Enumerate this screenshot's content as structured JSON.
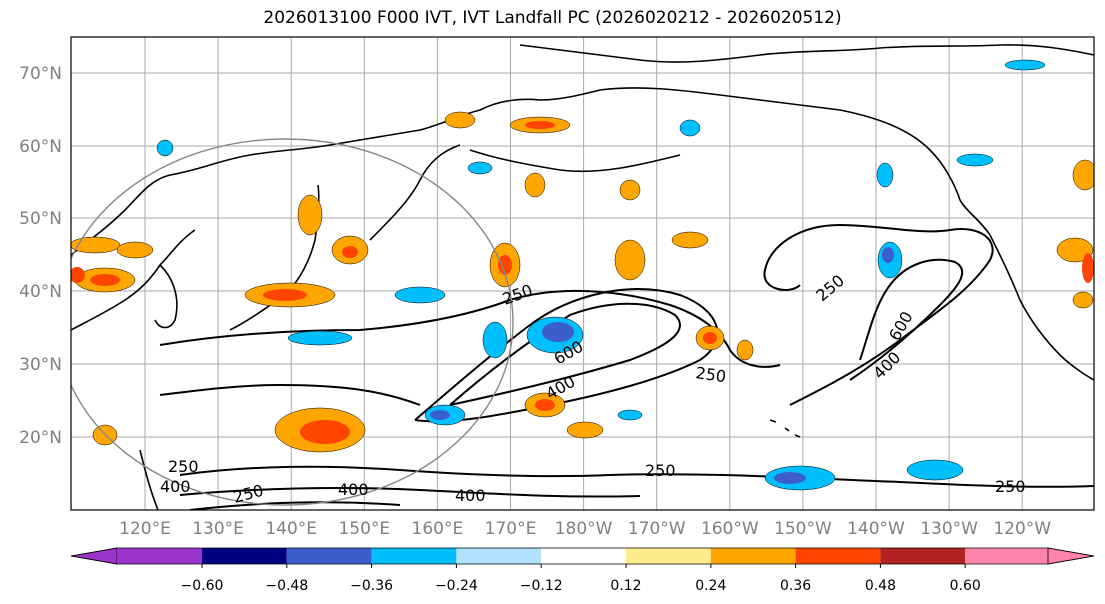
{
  "title": "2026013100 F000 IVT, IVT Landfall PC (2026020212 - 2026020512)",
  "lat_labels": [
    "70°N",
    "60°N",
    "50°N",
    "40°N",
    "30°N",
    "20°N"
  ],
  "lon_labels": [
    "120°E",
    "130°E",
    "140°E",
    "150°E",
    "160°E",
    "170°E",
    "180°W",
    "170°W",
    "160°W",
    "150°W",
    "140°W",
    "130°W",
    "120°W"
  ],
  "contour_labels": [
    "250",
    "250",
    "250",
    "250",
    "250",
    "250",
    "600",
    "400",
    "400",
    "400",
    "400",
    "600",
    "400",
    "250"
  ],
  "colorbar": {
    "colors": [
      "#9933cc",
      "#000080",
      "#3a5fcd",
      "#00bfff",
      "#b0e2ff",
      "#ffffff",
      "#ffec8b",
      "#ffa500",
      "#ff4500",
      "#b22222",
      "#ff82ab"
    ],
    "ticks": [
      "−0.60",
      "−0.48",
      "−0.36",
      "−0.24",
      "−0.12",
      "0.12",
      "0.24",
      "0.36",
      "0.48",
      "0.60"
    ]
  }
}
